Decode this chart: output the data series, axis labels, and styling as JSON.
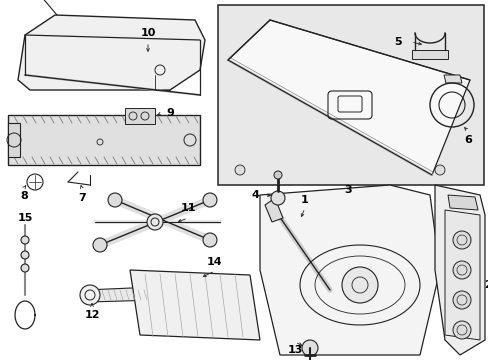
{
  "bg_color": "#ffffff",
  "lc": "#222222",
  "gc": "#aaaaaa",
  "fig_width": 4.89,
  "fig_height": 3.6,
  "dpi": 100,
  "fs": 7.5
}
